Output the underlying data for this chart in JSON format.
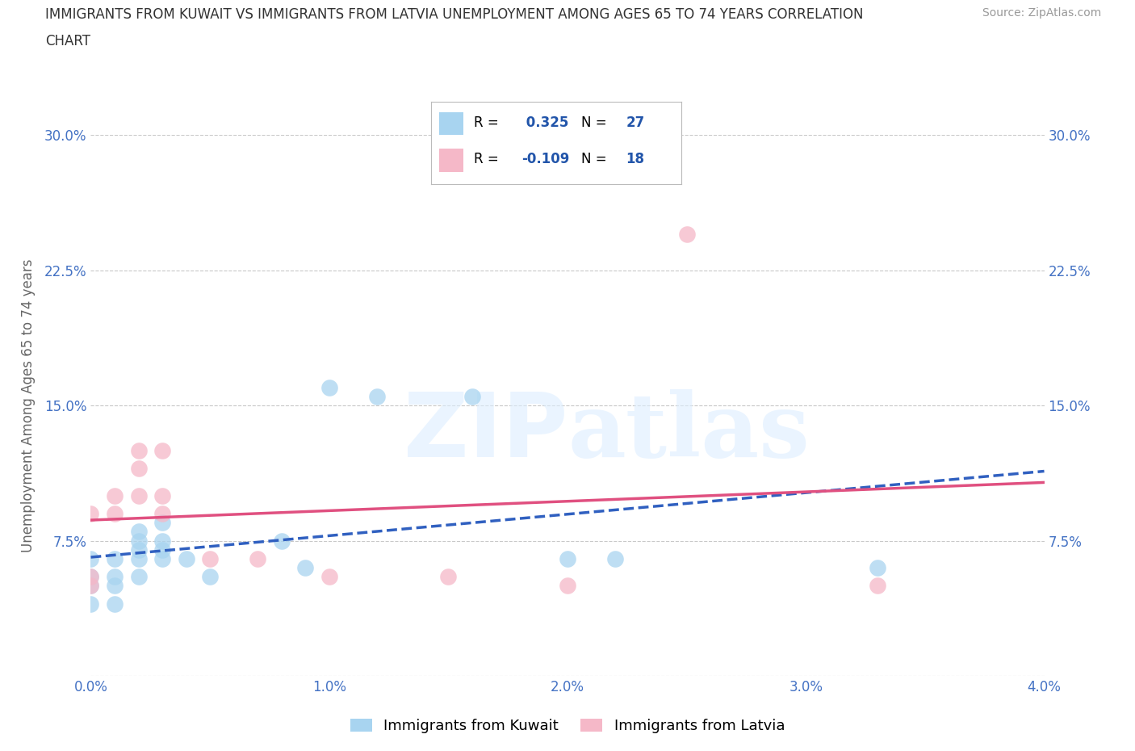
{
  "title_line1": "IMMIGRANTS FROM KUWAIT VS IMMIGRANTS FROM LATVIA UNEMPLOYMENT AMONG AGES 65 TO 74 YEARS CORRELATION",
  "title_line2": "CHART",
  "source": "Source: ZipAtlas.com",
  "ylabel": "Unemployment Among Ages 65 to 74 years",
  "xlabel_kuwait": "Immigrants from Kuwait",
  "xlabel_latvia": "Immigrants from Latvia",
  "watermark": "ZIPatlas",
  "xlim": [
    0.0,
    0.04
  ],
  "ylim": [
    0.0,
    0.3
  ],
  "xticks": [
    0.0,
    0.01,
    0.02,
    0.03,
    0.04
  ],
  "xtick_labels": [
    "0.0%",
    "1.0%",
    "2.0%",
    "3.0%",
    "4.0%"
  ],
  "yticks": [
    0.0,
    0.075,
    0.15,
    0.225,
    0.3
  ],
  "ytick_labels_left": [
    "",
    "7.5%",
    "15.0%",
    "22.5%",
    "30.0%"
  ],
  "ytick_labels_right": [
    "",
    "7.5%",
    "15.0%",
    "22.5%",
    "30.0%"
  ],
  "kuwait_R": 0.325,
  "kuwait_N": 27,
  "latvia_R": -0.109,
  "latvia_N": 18,
  "kuwait_color": "#A8D4F0",
  "latvia_color": "#F5B8C8",
  "kuwait_line_color": "#3060C0",
  "latvia_line_color": "#E05080",
  "kuwait_x": [
    0.0,
    0.0,
    0.0,
    0.0,
    0.001,
    0.001,
    0.001,
    0.001,
    0.002,
    0.002,
    0.002,
    0.002,
    0.002,
    0.003,
    0.003,
    0.003,
    0.003,
    0.004,
    0.005,
    0.008,
    0.009,
    0.01,
    0.012,
    0.016,
    0.02,
    0.022,
    0.033
  ],
  "kuwait_y": [
    0.04,
    0.05,
    0.055,
    0.065,
    0.04,
    0.05,
    0.055,
    0.065,
    0.055,
    0.065,
    0.07,
    0.075,
    0.08,
    0.065,
    0.07,
    0.075,
    0.085,
    0.065,
    0.055,
    0.075,
    0.06,
    0.16,
    0.155,
    0.155,
    0.065,
    0.065,
    0.06
  ],
  "latvia_x": [
    0.0,
    0.0,
    0.0,
    0.001,
    0.001,
    0.002,
    0.002,
    0.002,
    0.003,
    0.003,
    0.003,
    0.005,
    0.007,
    0.01,
    0.015,
    0.02,
    0.025,
    0.033
  ],
  "latvia_y": [
    0.05,
    0.055,
    0.09,
    0.09,
    0.1,
    0.1,
    0.115,
    0.125,
    0.09,
    0.1,
    0.125,
    0.065,
    0.065,
    0.055,
    0.055,
    0.05,
    0.245,
    0.05
  ],
  "grid_color": "#C8C8C8",
  "background_color": "#FFFFFF",
  "title_color": "#333333",
  "axis_label_color": "#666666",
  "tick_label_color": "#4472C4",
  "legend_box_color": "#DDDDDD"
}
